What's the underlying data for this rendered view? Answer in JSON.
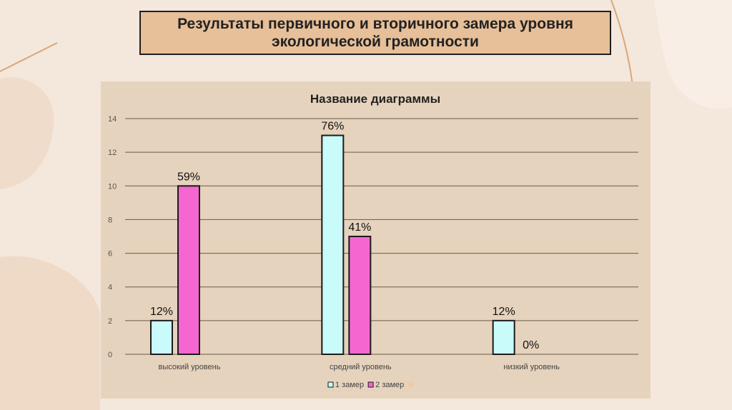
{
  "slide": {
    "title": "Результаты первичного и вторичного замера уровня\nэкологической грамотности"
  },
  "colors": {
    "series1": "#c9fbfb",
    "series2": "#f566d0",
    "series3": "#f3c9a2",
    "bar_outline": "#1b1b1b",
    "gridline": "#6b5a4a"
  },
  "chart_data": {
    "type": "bar",
    "title": "Название диаграммы",
    "categories": [
      "высокий уровень",
      "средний уровень",
      "низкий уровень"
    ],
    "ylim": [
      0,
      14
    ],
    "yticks": [
      0,
      2,
      4,
      6,
      8,
      10,
      12,
      14
    ],
    "grid": true,
    "legend_position": "bottom",
    "series": [
      {
        "name": "1 замер",
        "values": [
          2,
          13,
          2
        ],
        "data_labels": [
          "12%",
          "76%",
          "12%"
        ]
      },
      {
        "name": "2 замер",
        "values": [
          10,
          7,
          0
        ],
        "data_labels": [
          "59%",
          "41%",
          "0%"
        ]
      },
      {
        "name": "",
        "values": [
          null,
          null,
          null
        ],
        "data_labels": [
          "",
          "",
          ""
        ]
      }
    ]
  }
}
